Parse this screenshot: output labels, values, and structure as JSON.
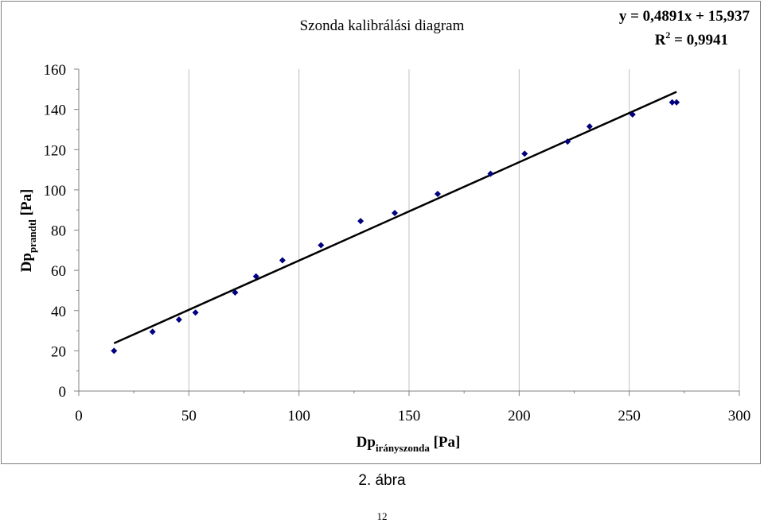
{
  "chart_data": {
    "type": "scatter",
    "title": "Szonda kalibrálási diagram",
    "equation": "y = 0,4891x + 15,937",
    "r2_label": "R",
    "r2_exp": "2",
    "r2_value": " = 0,9941",
    "xlabel_main": "Dp",
    "xlabel_sub": "irányszonda",
    "xlabel_unit": " [Pa]",
    "ylabel_main": "Dp",
    "ylabel_sub": "prandtl",
    "ylabel_unit": " [Pa]",
    "xlim": [
      0,
      300
    ],
    "ylim": [
      0,
      160
    ],
    "xticks": [
      0,
      50,
      100,
      150,
      200,
      250,
      300
    ],
    "yticks": [
      0,
      20,
      40,
      60,
      80,
      100,
      120,
      140,
      160
    ],
    "grid": "x-major vertical lines",
    "marker_color": "#000080",
    "points": [
      {
        "x": 16,
        "y": 20
      },
      {
        "x": 33.5,
        "y": 29.5
      },
      {
        "x": 45.5,
        "y": 35.5
      },
      {
        "x": 53,
        "y": 39
      },
      {
        "x": 71,
        "y": 49
      },
      {
        "x": 80.5,
        "y": 57
      },
      {
        "x": 92.5,
        "y": 65
      },
      {
        "x": 110,
        "y": 72.5
      },
      {
        "x": 128,
        "y": 84.5
      },
      {
        "x": 143.5,
        "y": 88.5
      },
      {
        "x": 163,
        "y": 98
      },
      {
        "x": 187,
        "y": 108
      },
      {
        "x": 202.5,
        "y": 118
      },
      {
        "x": 222,
        "y": 124
      },
      {
        "x": 232,
        "y": 131.5
      },
      {
        "x": 251.5,
        "y": 137.5
      },
      {
        "x": 269.5,
        "y": 143.5
      },
      {
        "x": 271.5,
        "y": 143.5
      }
    ],
    "trendline": {
      "slope": 0.4891,
      "intercept": 15.937,
      "x_start": 16,
      "x_end": 271.5
    }
  },
  "caption": "2. ábra",
  "page_number": "12"
}
